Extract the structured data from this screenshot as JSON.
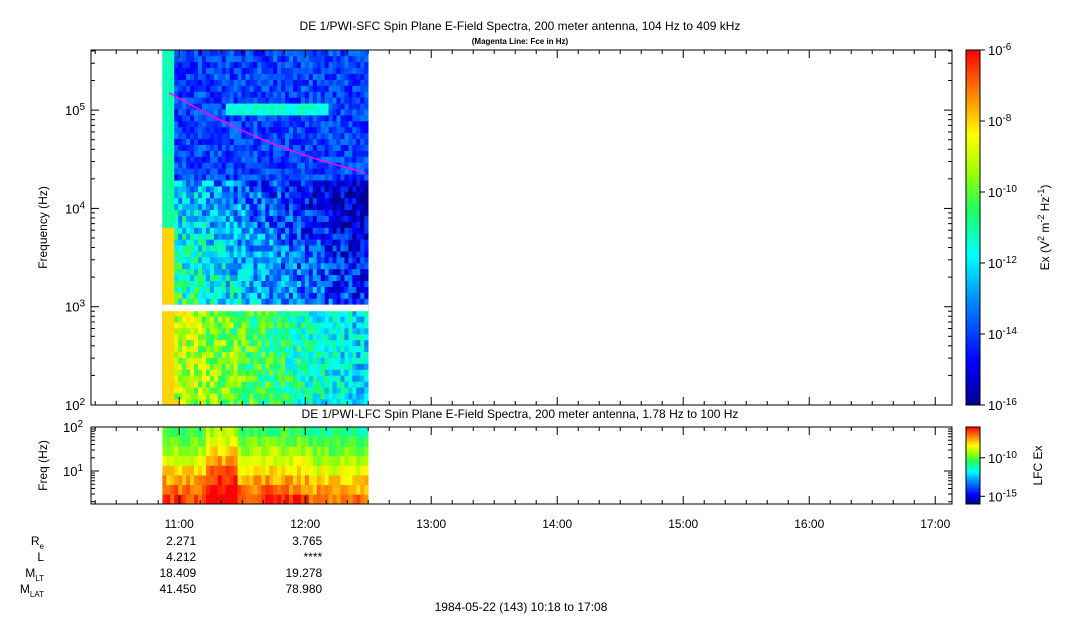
{
  "chart_data": [
    {
      "type": "heatmap",
      "title": "DE 1/PWI-SFC  Spin Plane E-Field Spectra, 200 meter antenna, 104 Hz to 409 kHz",
      "subtitle": "(Magenta Line: Fce in Hz)",
      "ylabel": "Frequency (Hz)",
      "yscale": "log",
      "ylim": [
        100,
        409000
      ],
      "y_ticks": [
        {
          "value": 100,
          "base": "10",
          "exp": "2"
        },
        {
          "value": 1000,
          "base": "10",
          "exp": "3"
        },
        {
          "value": 10000,
          "base": "10",
          "exp": "4"
        },
        {
          "value": 100000,
          "base": "10",
          "exp": "5"
        }
      ],
      "data_extent_time": [
        "10:52",
        "12:30"
      ],
      "gap_freq_hz": [
        900,
        1050
      ],
      "fce_line": {
        "name": "Fce in Hz",
        "color": "#ff00ff",
        "t_hours": [
          10.92,
          11.1,
          11.3,
          11.5,
          11.7,
          11.9,
          12.1,
          12.3,
          12.48
        ],
        "values_hz": [
          150000,
          112000,
          82000,
          62000,
          48000,
          38500,
          31500,
          26500,
          23000
        ]
      },
      "colorbar": {
        "label": "Ex (V",
        "label_sup1": "2",
        "label_mid": " m",
        "label_sup2": "-2",
        "label_mid2": " Hz",
        "label_sup3": "-1",
        "label_end": ")",
        "scale": "log",
        "range": [
          1e-16,
          1e-06
        ],
        "ticks": [
          {
            "value": 1e-06,
            "base": "10",
            "exp": "-6"
          },
          {
            "value": 1e-08,
            "base": "10",
            "exp": "-8"
          },
          {
            "value": 1e-10,
            "base": "10",
            "exp": "-10"
          },
          {
            "value": 1e-12,
            "base": "10",
            "exp": "-12"
          },
          {
            "value": 1e-14,
            "base": "10",
            "exp": "-14"
          },
          {
            "value": 1e-16,
            "base": "10",
            "exp": "-16"
          }
        ]
      }
    },
    {
      "type": "heatmap",
      "title": "DE 1/PWI-LFC  Spin Plane E-Field Spectra, 200 meter antenna, 1.78 Hz to 100 Hz",
      "ylabel": "Freq (Hz)",
      "yscale": "log",
      "ylim": [
        1.78,
        100
      ],
      "y_ticks": [
        {
          "value": 10,
          "base": "10",
          "exp": "1"
        },
        {
          "value": 100,
          "base": "10",
          "exp": "2"
        }
      ],
      "data_extent_time": [
        "10:52",
        "12:30"
      ],
      "colorbar": {
        "label": "LFC Ex",
        "scale": "log",
        "range": [
          1e-16,
          1e-06
        ],
        "ticks": [
          {
            "value": 1e-10,
            "base": "10",
            "exp": "-10"
          },
          {
            "value": 1e-15,
            "base": "10",
            "exp": "-15"
          }
        ]
      }
    }
  ],
  "time_axis": {
    "range_hours": [
      10.3,
      17.133
    ],
    "ticks": [
      "11:00",
      "12:00",
      "13:00",
      "14:00",
      "15:00",
      "16:00",
      "17:00"
    ],
    "tick_hours": [
      11,
      12,
      13,
      14,
      15,
      16,
      17
    ]
  },
  "ephemeris": {
    "rows": [
      {
        "label": "R",
        "sub": "e",
        "values": [
          "2.271",
          "3.765"
        ]
      },
      {
        "label": "L",
        "sub": "",
        "values": [
          "4.212",
          "****"
        ]
      },
      {
        "label": "M",
        "sub": "LT",
        "values": [
          "18.409",
          "19.278"
        ]
      },
      {
        "label": "M",
        "sub": "LAT",
        "values": [
          "41.450",
          "78.980"
        ]
      }
    ]
  },
  "footer": "1984-05-22 (143) 10:18 to 17:08"
}
